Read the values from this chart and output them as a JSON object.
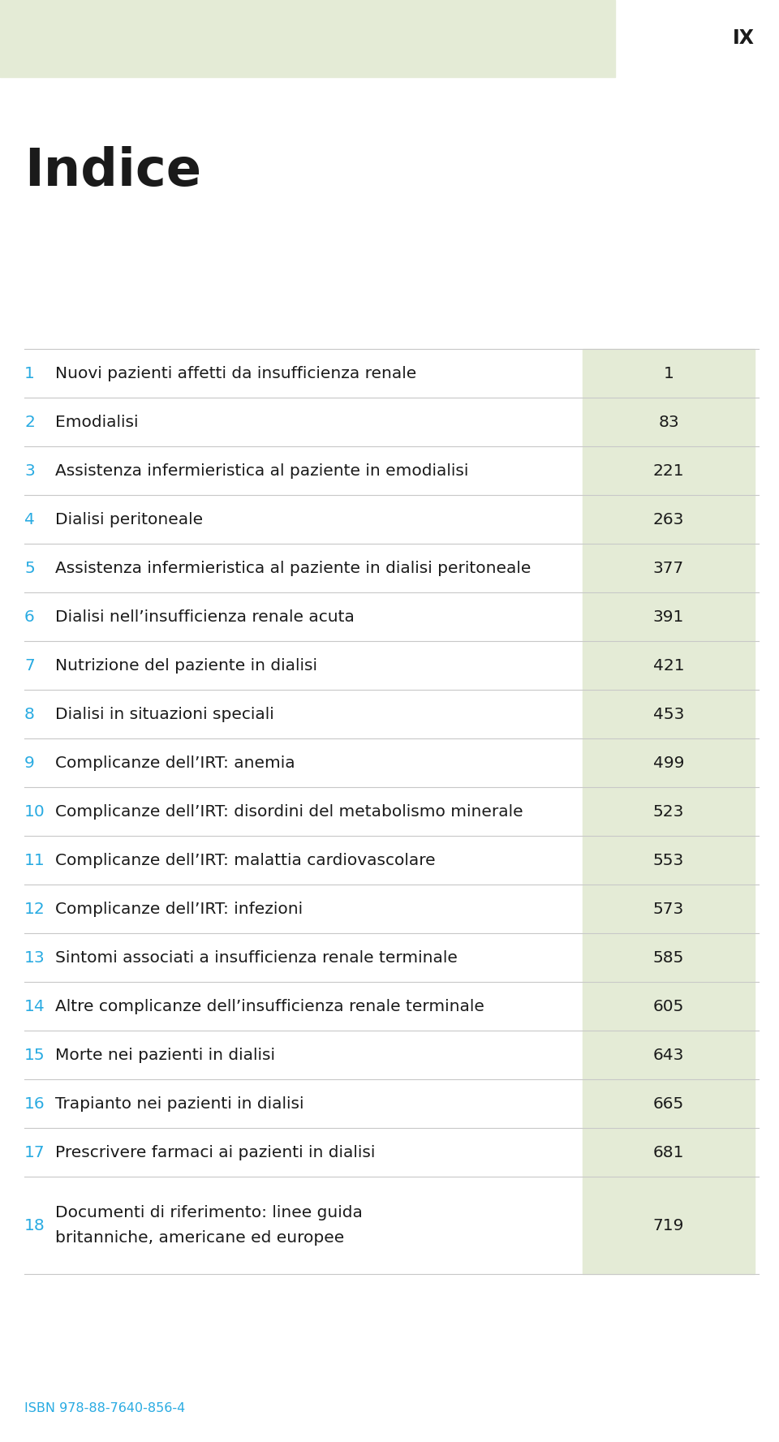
{
  "page_label": "IX",
  "title": "Indice",
  "header_bg_color": "#e4ebd6",
  "page_bg_color": "#ffffff",
  "number_color": "#29abe2",
  "text_color": "#1a1a1a",
  "page_num_color": "#1a1a1a",
  "line_color": "#c8c8c8",
  "isbn_color": "#29abe2",
  "isbn_text": "ISBN 978-88-7640-856-4",
  "entries": [
    {
      "num": "1",
      "text": "Nuovi pazienti affetti da insufficienza renale",
      "page": "1",
      "two_line": false
    },
    {
      "num": "2",
      "text": "Emodialisi",
      "page": "83",
      "two_line": false
    },
    {
      "num": "3",
      "text": "Assistenza infermieristica al paziente in emodialisi",
      "page": "221",
      "two_line": false
    },
    {
      "num": "4",
      "text": "Dialisi peritoneale",
      "page": "263",
      "two_line": false
    },
    {
      "num": "5",
      "text": "Assistenza infermieristica al paziente in dialisi peritoneale",
      "page": "377",
      "two_line": false
    },
    {
      "num": "6",
      "text": "Dialisi nell’insufficienza renale acuta",
      "page": "391",
      "two_line": false
    },
    {
      "num": "7",
      "text": "Nutrizione del paziente in dialisi",
      "page": "421",
      "two_line": false
    },
    {
      "num": "8",
      "text": "Dialisi in situazioni speciali",
      "page": "453",
      "two_line": false
    },
    {
      "num": "9",
      "text": "Complicanze dell’IRT: anemia",
      "page": "499",
      "two_line": false
    },
    {
      "num": "10",
      "text": "Complicanze dell’IRT: disordini del metabolismo minerale",
      "page": "523",
      "two_line": false
    },
    {
      "num": "11",
      "text": "Complicanze dell’IRT: malattia cardiovascolare",
      "page": "553",
      "two_line": false
    },
    {
      "num": "12",
      "text": "Complicanze dell’IRT: infezioni",
      "page": "573",
      "two_line": false
    },
    {
      "num": "13",
      "text": "Sintomi associati a insufficienza renale terminale",
      "page": "585",
      "two_line": false
    },
    {
      "num": "14",
      "text": "Altre complicanze dell’insufficienza renale terminale",
      "page": "605",
      "two_line": false
    },
    {
      "num": "15",
      "text": "Morte nei pazienti in dialisi",
      "page": "643",
      "two_line": false
    },
    {
      "num": "16",
      "text": "Trapianto nei pazienti in dialisi",
      "page": "665",
      "two_line": false
    },
    {
      "num": "17",
      "text": "Prescrivere farmaci ai pazienti in dialisi",
      "page": "681",
      "two_line": false
    },
    {
      "num": "18",
      "text": "Documenti di riferimento: linee guida\nbritanniche, americane ed europee",
      "page": "719",
      "two_line": true
    }
  ]
}
